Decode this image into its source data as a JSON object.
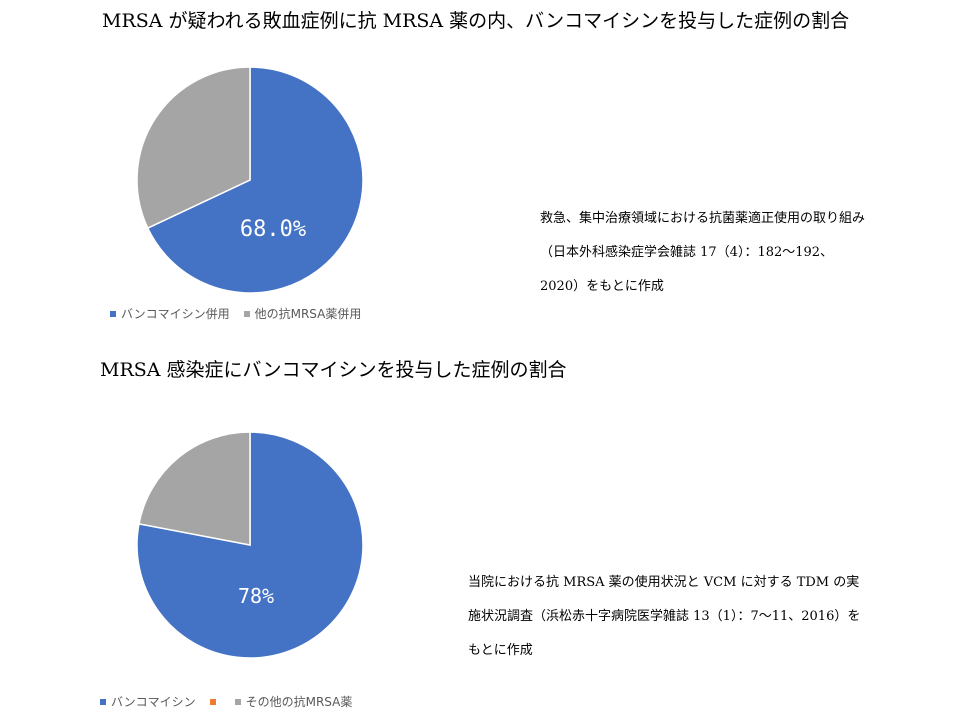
{
  "chart_data": [
    {
      "type": "pie",
      "title": "MRSA が疑われる敗血症例に抗 MRSA 薬の内、バンコマイシンを投与した症例の割合",
      "categories": [
        "バンコマイシン併用",
        "他の抗MRSA薬併用"
      ],
      "values": [
        68.0,
        32.0
      ],
      "colors": [
        "#4472C4",
        "#A5A5A5"
      ],
      "data_label": "68.0%",
      "legend_position": "bottom-left",
      "source": "救急、集中治療領域における抗菌薬適正使用の取り組み（日本外科感染症学会雑誌 17（4）：182〜192、2020）をもとに作成"
    },
    {
      "type": "pie",
      "title": "MRSA 感染症にバンコマイシンを投与した症例の割合",
      "categories": [
        "バンコマイシン",
        "",
        "その他の抗MRSA薬"
      ],
      "values": [
        78,
        0,
        22
      ],
      "colors": [
        "#4472C4",
        "#ED7D31",
        "#A5A5A5"
      ],
      "data_label": "78%",
      "legend_position": "bottom-left",
      "source": "当院における抗 MRSA 薬の使用状況と VCM に対する TDM の実施状況調査（浜松赤十字病院医学雑誌 13（1）：7〜11、2016）をもとに作成"
    }
  ]
}
